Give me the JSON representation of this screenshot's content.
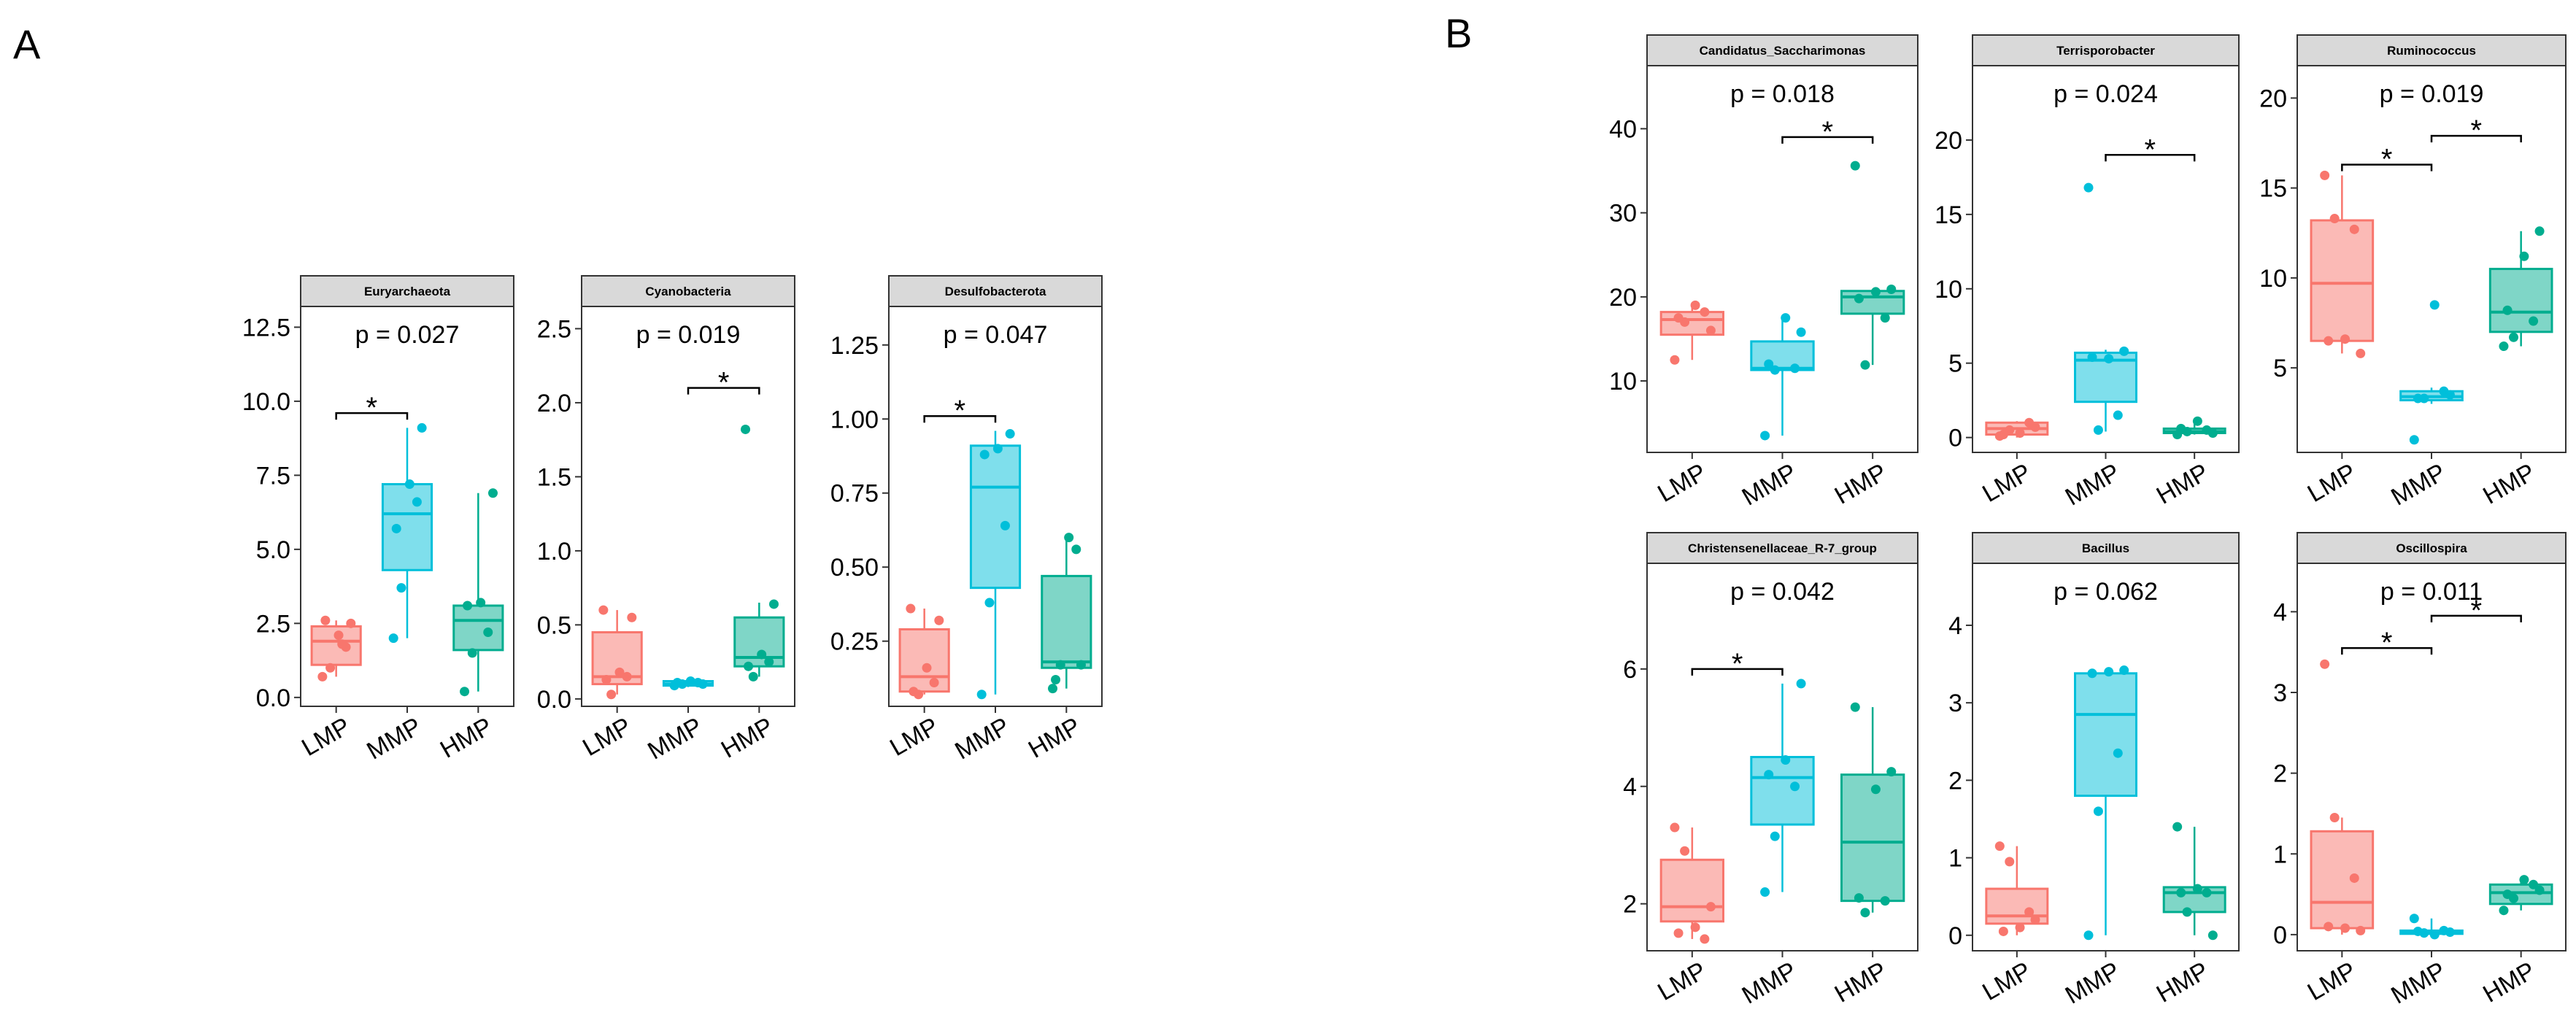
{
  "figure": {
    "panel_labels": {
      "A": "A",
      "B": "B"
    }
  },
  "chart_data": [
    {
      "type": "boxplot",
      "panel": "A",
      "title": "Euryarchaeota",
      "pvalue": "p = 0.027",
      "categories": [
        "LMP",
        "MMP",
        "HMP"
      ],
      "ylim": [
        -0.3,
        13.2
      ],
      "yticks": [
        0.0,
        2.5,
        5.0,
        7.5,
        10.0,
        12.5
      ],
      "decimals": 1,
      "boxes": [
        {
          "group": "LMP",
          "min": 0.7,
          "q1": 1.1,
          "median": 1.9,
          "q3": 2.4,
          "max": 2.6
        },
        {
          "group": "MMP",
          "min": 2.0,
          "q1": 4.3,
          "median": 6.2,
          "q3": 7.2,
          "max": 9.1
        },
        {
          "group": "HMP",
          "min": 0.2,
          "q1": 1.6,
          "median": 2.6,
          "q3": 3.1,
          "max": 6.9
        }
      ],
      "points": [
        [
          0.7,
          1.0,
          1.7,
          2.1,
          2.5,
          2.6,
          1.8
        ],
        [
          2.0,
          3.7,
          6.6,
          7.2,
          9.1,
          5.7
        ],
        [
          0.2,
          1.5,
          2.2,
          3.2,
          6.9,
          3.1
        ]
      ],
      "significance": [
        {
          "from": 0,
          "to": 1,
          "y": 9.6,
          "label": "*"
        }
      ]
    },
    {
      "type": "boxplot",
      "panel": "A",
      "title": "Cyanobacteria",
      "pvalue": "p = 0.019",
      "categories": [
        "LMP",
        "MMP",
        "HMP"
      ],
      "ylim": [
        -0.05,
        2.65
      ],
      "yticks": [
        0.0,
        0.5,
        1.0,
        1.5,
        2.0,
        2.5
      ],
      "decimals": 1,
      "boxes": [
        {
          "group": "LMP",
          "min": 0.03,
          "q1": 0.1,
          "median": 0.15,
          "q3": 0.45,
          "max": 0.6
        },
        {
          "group": "MMP",
          "min": 0.08,
          "q1": 0.09,
          "median": 0.1,
          "q3": 0.12,
          "max": 0.13
        },
        {
          "group": "HMP",
          "min": 0.15,
          "q1": 0.22,
          "median": 0.28,
          "q3": 0.55,
          "max": 0.65
        }
      ],
      "points": [
        [
          0.6,
          0.03,
          0.15,
          0.18,
          0.55,
          0.13
        ],
        [
          0.09,
          0.1,
          0.11,
          0.12,
          0.1,
          0.11
        ],
        [
          1.82,
          0.15,
          0.25,
          0.3,
          0.64,
          0.22
        ]
      ],
      "significance": [
        {
          "from": 1,
          "to": 2,
          "y": 2.1,
          "label": "*"
        }
      ]
    },
    {
      "type": "boxplot",
      "panel": "A",
      "title": "Desulfobacterota",
      "pvalue": "p = 0.047",
      "categories": [
        "LMP",
        "MMP",
        "HMP"
      ],
      "ylim": [
        0.03,
        1.38
      ],
      "yticks": [
        0.25,
        0.5,
        0.75,
        1.0,
        1.25
      ],
      "decimals": 2,
      "boxes": [
        {
          "group": "LMP",
          "min": 0.07,
          "q1": 0.08,
          "median": 0.13,
          "q3": 0.29,
          "max": 0.36
        },
        {
          "group": "MMP",
          "min": 0.07,
          "q1": 0.43,
          "median": 0.77,
          "q3": 0.91,
          "max": 0.96
        },
        {
          "group": "HMP",
          "min": 0.09,
          "q1": 0.16,
          "median": 0.18,
          "q3": 0.47,
          "max": 0.6
        }
      ],
      "points": [
        [
          0.36,
          0.07,
          0.11,
          0.16,
          0.32,
          0.08
        ],
        [
          0.07,
          0.38,
          0.64,
          0.9,
          0.95,
          0.88
        ],
        [
          0.09,
          0.17,
          0.56,
          0.6,
          0.17,
          0.12
        ]
      ],
      "significance": [
        {
          "from": 0,
          "to": 1,
          "y": 1.01,
          "label": "*"
        }
      ]
    },
    {
      "type": "boxplot",
      "panel": "B",
      "title": "Candidatus_Saccharimonas",
      "pvalue": "p = 0.018",
      "categories": [
        "LMP",
        "MMP",
        "HMP"
      ],
      "ylim": [
        1.5,
        47.5
      ],
      "yticks": [
        10,
        20,
        30,
        40
      ],
      "decimals": 0,
      "boxes": [
        {
          "group": "LMP",
          "min": 12.5,
          "q1": 15.5,
          "median": 17.3,
          "q3": 18.2,
          "max": 19.0
        },
        {
          "group": "MMP",
          "min": 3.5,
          "q1": 11.3,
          "median": 11.5,
          "q3": 14.7,
          "max": 17.5
        },
        {
          "group": "HMP",
          "min": 11.9,
          "q1": 18.0,
          "median": 20.0,
          "q3": 20.7,
          "max": 20.9
        }
      ],
      "points": [
        [
          12.5,
          17.0,
          18.2,
          19.0,
          16.0,
          17.5
        ],
        [
          3.5,
          11.3,
          11.5,
          17.5,
          15.8,
          12.0
        ],
        [
          35.6,
          11.9,
          17.5,
          20.6,
          20.9,
          19.8
        ]
      ],
      "significance": [
        {
          "from": 1,
          "to": 2,
          "y": 39.0,
          "label": "*"
        }
      ]
    },
    {
      "type": "boxplot",
      "panel": "B",
      "title": "Terrisporobacter",
      "pvalue": "p = 0.024",
      "categories": [
        "LMP",
        "MMP",
        "HMP"
      ],
      "ylim": [
        -1.0,
        25.0
      ],
      "yticks": [
        0,
        5,
        10,
        15,
        20
      ],
      "decimals": 0,
      "boxes": [
        {
          "group": "LMP",
          "min": 0.0,
          "q1": 0.2,
          "median": 0.6,
          "q3": 1.0,
          "max": 1.1
        },
        {
          "group": "MMP",
          "min": 0.4,
          "q1": 2.4,
          "median": 5.2,
          "q3": 5.7,
          "max": 5.9
        },
        {
          "group": "HMP",
          "min": 0.2,
          "q1": 0.3,
          "median": 0.4,
          "q3": 0.6,
          "max": 1.1
        }
      ],
      "points": [
        [
          0.1,
          0.5,
          1.0,
          0.3,
          0.7,
          0.2
        ],
        [
          16.8,
          0.5,
          1.5,
          5.3,
          5.8,
          5.4
        ],
        [
          0.2,
          0.4,
          0.5,
          1.1,
          0.3,
          0.6
        ]
      ],
      "significance": [
        {
          "from": 1,
          "to": 2,
          "y": 19.0,
          "label": "*"
        }
      ]
    },
    {
      "type": "boxplot",
      "panel": "B",
      "title": "Ruminococcus",
      "pvalue": "p = 0.019",
      "categories": [
        "LMP",
        "MMP",
        "HMP"
      ],
      "ylim": [
        0.3,
        21.8
      ],
      "yticks": [
        5,
        10,
        15,
        20
      ],
      "decimals": 0,
      "boxes": [
        {
          "group": "LMP",
          "min": 5.8,
          "q1": 6.5,
          "median": 9.7,
          "q3": 13.2,
          "max": 15.7
        },
        {
          "group": "MMP",
          "min": 3.0,
          "q1": 3.2,
          "median": 3.4,
          "q3": 3.7,
          "max": 3.9
        },
        {
          "group": "HMP",
          "min": 6.2,
          "q1": 7.0,
          "median": 8.1,
          "q3": 10.5,
          "max": 12.6
        }
      ],
      "points": [
        [
          15.7,
          13.3,
          12.7,
          6.6,
          5.8,
          6.5
        ],
        [
          1.0,
          3.3,
          3.7,
          8.5,
          3.5,
          3.3
        ],
        [
          6.2,
          6.7,
          7.6,
          11.2,
          12.6,
          8.2
        ]
      ],
      "significance": [
        {
          "from": 0,
          "to": 1,
          "y": 16.3,
          "label": "*"
        },
        {
          "from": 1,
          "to": 2,
          "y": 17.9,
          "label": "*"
        }
      ]
    },
    {
      "type": "boxplot",
      "panel": "B",
      "title": "Christensenellaceae_R-7_group",
      "pvalue": "p = 0.042",
      "categories": [
        "LMP",
        "MMP",
        "HMP"
      ],
      "ylim": [
        1.2,
        7.8
      ],
      "yticks": [
        2,
        4,
        6
      ],
      "decimals": 0,
      "boxes": [
        {
          "group": "LMP",
          "min": 1.4,
          "q1": 1.7,
          "median": 1.95,
          "q3": 2.75,
          "max": 3.3
        },
        {
          "group": "MMP",
          "min": 2.2,
          "q1": 3.35,
          "median": 4.15,
          "q3": 4.5,
          "max": 5.75
        },
        {
          "group": "HMP",
          "min": 1.85,
          "q1": 2.05,
          "median": 3.05,
          "q3": 4.2,
          "max": 5.35
        }
      ],
      "points": [
        [
          3.3,
          2.9,
          1.4,
          1.6,
          1.95,
          1.5
        ],
        [
          2.2,
          3.15,
          4.0,
          4.45,
          5.75,
          4.2
        ],
        [
          5.35,
          1.85,
          2.05,
          3.95,
          4.25,
          2.1
        ]
      ],
      "significance": [
        {
          "from": 0,
          "to": 1,
          "y": 6.0,
          "label": "*"
        }
      ]
    },
    {
      "type": "boxplot",
      "panel": "B",
      "title": "Bacillus",
      "pvalue": "p = 0.062",
      "categories": [
        "LMP",
        "MMP",
        "HMP"
      ],
      "ylim": [
        -0.2,
        4.8
      ],
      "yticks": [
        0,
        1,
        2,
        3,
        4
      ],
      "decimals": 0,
      "boxes": [
        {
          "group": "LMP",
          "min": 0.0,
          "q1": 0.15,
          "median": 0.25,
          "q3": 0.6,
          "max": 1.15
        },
        {
          "group": "MMP",
          "min": 0.0,
          "q1": 1.8,
          "median": 2.85,
          "q3": 3.38,
          "max": 3.42
        },
        {
          "group": "HMP",
          "min": 0.0,
          "q1": 0.3,
          "median": 0.55,
          "q3": 0.62,
          "max": 1.4
        }
      ],
      "points": [
        [
          1.15,
          0.95,
          0.3,
          0.1,
          0.2,
          0.05
        ],
        [
          0.0,
          1.6,
          2.35,
          3.4,
          3.42,
          3.38
        ],
        [
          1.4,
          0.3,
          0.55,
          0.6,
          0.0,
          0.55
        ]
      ],
      "significance": []
    },
    {
      "type": "boxplot",
      "panel": "B",
      "title": "Oscillospira",
      "pvalue": "p = 0.011",
      "categories": [
        "LMP",
        "MMP",
        "HMP"
      ],
      "ylim": [
        -0.2,
        4.6
      ],
      "yticks": [
        0,
        1,
        2,
        3,
        4
      ],
      "decimals": 0,
      "boxes": [
        {
          "group": "LMP",
          "min": 0.0,
          "q1": 0.08,
          "median": 0.4,
          "q3": 1.28,
          "max": 1.45
        },
        {
          "group": "MMP",
          "min": 0.0,
          "q1": 0.01,
          "median": 0.03,
          "q3": 0.05,
          "max": 0.2
        },
        {
          "group": "HMP",
          "min": 0.3,
          "q1": 0.38,
          "median": 0.52,
          "q3": 0.62,
          "max": 0.68
        }
      ],
      "points": [
        [
          3.35,
          1.45,
          0.7,
          0.08,
          0.05,
          0.1
        ],
        [
          0.2,
          0.02,
          0.05,
          0.0,
          0.03,
          0.04
        ],
        [
          0.3,
          0.45,
          0.62,
          0.68,
          0.55,
          0.5
        ]
      ],
      "significance": [
        {
          "from": 0,
          "to": 1,
          "y": 3.55,
          "label": "*"
        },
        {
          "from": 1,
          "to": 2,
          "y": 3.95,
          "label": "*"
        }
      ]
    }
  ],
  "colors": {
    "LMP": "#F8766D",
    "MMP": "#00BFDA",
    "HMP": "#00AD8F",
    "strip_fill": "#D9D9D9",
    "strip_border": "#333333",
    "panel_border": "#333333",
    "text": "#000000",
    "axis": "#333333"
  }
}
